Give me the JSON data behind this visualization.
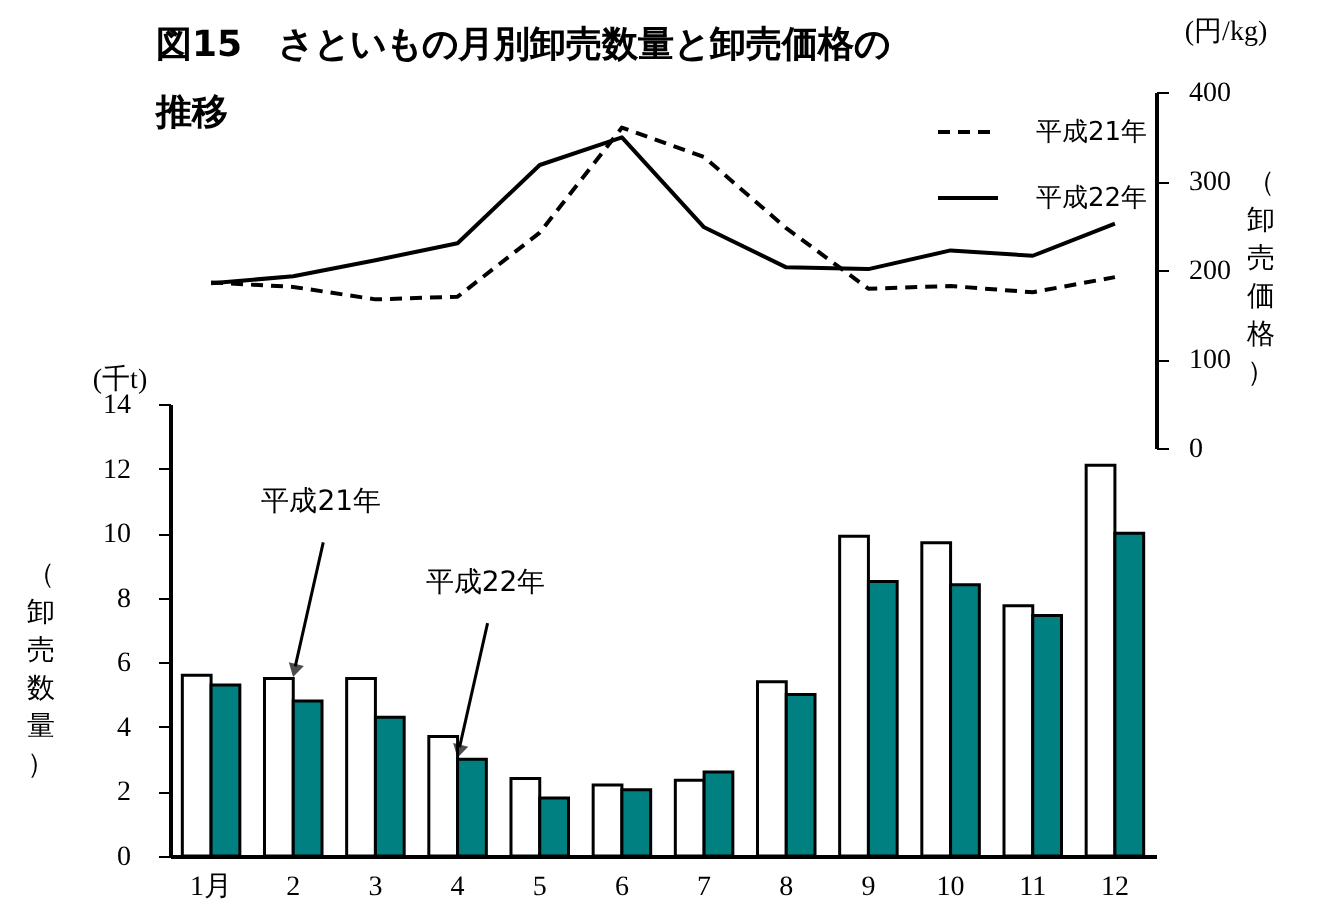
{
  "chart_data": [
    {
      "type": "line",
      "title": "図15　さといもの月別卸売数量と卸売価格の推移",
      "categories": [
        null,
        null,
        null,
        null,
        null,
        null,
        null,
        null,
        null,
        null,
        null,
        null
      ],
      "series": [
        {
          "name": "平成21年",
          "color": "#000000",
          "line_style": "dashed",
          "values": [
            186,
            181,
            167,
            170,
            242,
            360,
            327,
            247,
            179,
            182,
            175,
            192
          ]
        },
        {
          "name": "平成22年",
          "color": "#000000",
          "line_style": "solid",
          "values": [
            185,
            193,
            211,
            230,
            318,
            349,
            248,
            203,
            201,
            222,
            216,
            252
          ]
        }
      ],
      "ylim": [
        0,
        400
      ],
      "yticks": [
        0,
        100,
        200,
        300,
        400
      ],
      "ylabel": "（卸売価格）",
      "annotations": [
        "(円/kg)"
      ],
      "legend": "top right",
      "tick_labels": "y"
    },
    {
      "type": "bar",
      "categories": [
        "1月",
        "2",
        "3",
        "4",
        "5",
        "6",
        "7",
        "8",
        "9",
        "10",
        "11",
        "12"
      ],
      "series": [
        {
          "color": "#ffffff",
          "values": [
            5.6,
            5.5,
            5.5,
            3.7,
            2.4,
            2.2,
            2.35,
            5.4,
            9.9,
            9.7,
            7.75,
            12.1
          ]
        },
        {
          "color": "#008080",
          "values": [
            5.3,
            4.8,
            4.3,
            3.0,
            1.8,
            2.05,
            2.6,
            5.0,
            8.5,
            8.4,
            7.45,
            10.0
          ]
        }
      ],
      "ylim": [
        0,
        14
      ],
      "yticks": [
        0,
        2,
        4,
        6,
        8,
        10,
        12,
        14
      ],
      "ylabel": "（卸売数量）",
      "annotations": [
        "(千t)",
        {
          "text": "平成21年",
          "x": "2",
          "y": 5.5
        },
        {
          "text": "平成22年",
          "x": "4",
          "y": 3.0
        }
      ]
    }
  ]
}
